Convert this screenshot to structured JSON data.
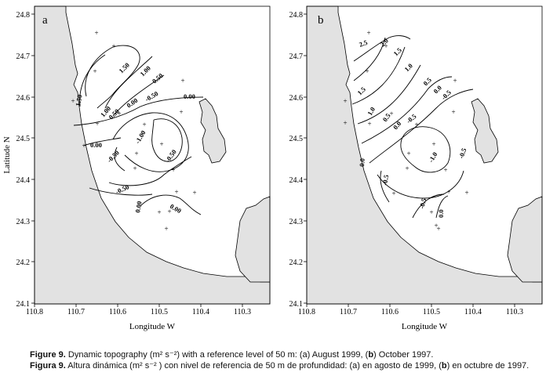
{
  "panels": [
    {
      "letter": "a",
      "contour_labels": [
        "1.50",
        "1.00",
        "0.50",
        "1.50",
        "1.00",
        "0.50",
        "0.00",
        "-0.50",
        "0.00",
        "-1.00",
        "0.00",
        "-0.50",
        "-0.50",
        "-0.50",
        "0.00",
        "0.00"
      ]
    },
    {
      "letter": "b",
      "contour_labels": [
        "2.5",
        "2.0",
        "1.5",
        "1.0",
        "1.5",
        "0.5",
        "0.0",
        "-0.5",
        "1.0",
        "0.5",
        "0.0",
        "-0.5",
        "-1.0",
        "-0.5",
        "0.0",
        "-0.5",
        "-0.5",
        "0.0"
      ]
    }
  ],
  "axes": {
    "y_ticks": [
      "24.8",
      "24.7",
      "24.6",
      "24.5",
      "24.4",
      "24.3",
      "24.2",
      "24.1"
    ],
    "x_ticks": [
      "110.8",
      "110.7",
      "110.6",
      "110.5",
      "110.4",
      "110.3"
    ],
    "ylabel": "Latitude N",
    "xlabel": "Longitude W"
  },
  "caption": {
    "line1_prefix": "Figure 9.",
    "line1_text": " Dynamic topography (m² s⁻²) with a reference level of 50 m: (a) August 1999, (",
    "line1_b": "b",
    "line1_end": ") October 1997.",
    "line2_prefix": "Figura 9.",
    "line2_text": " Altura dinámica (m² s⁻² ) con nivel de referencia de 50 m de profundidad: (a) en agosto de 1999, (",
    "line2_b": "b",
    "line2_end": ") en octubre de 1997."
  },
  "colors": {
    "land": "#e2e2e2",
    "sea": "#ffffff",
    "line": "#000000"
  }
}
